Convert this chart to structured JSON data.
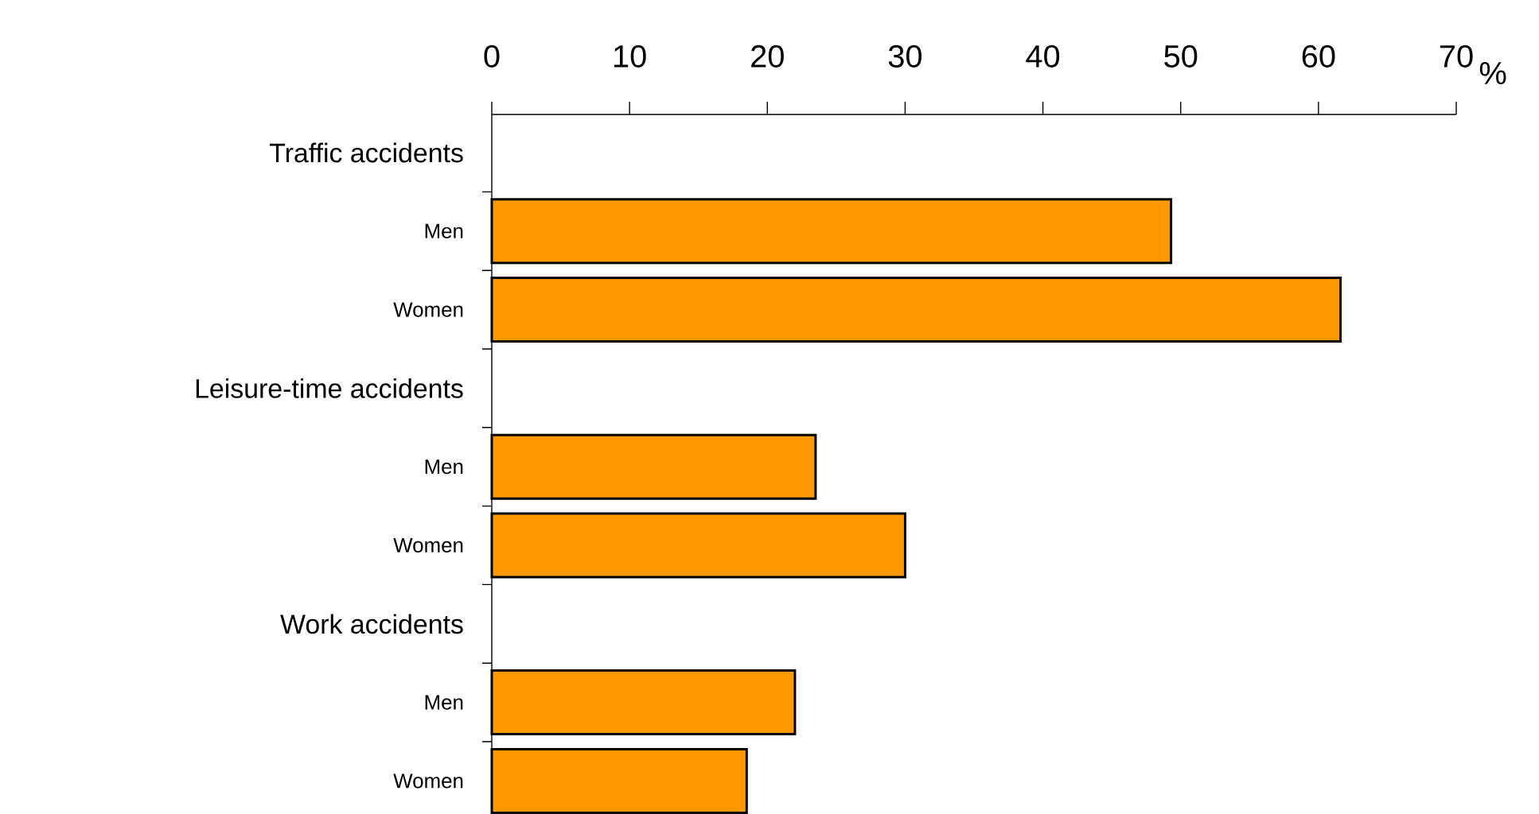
{
  "chart_data": {
    "type": "bar",
    "orientation": "horizontal",
    "xlabel": "%",
    "categories": [
      "Traffic accidents",
      "Men",
      "Women",
      "Leisure-time accidents",
      "Men",
      "Women",
      "Work accidents",
      "Men",
      "Women"
    ],
    "values": [
      null,
      49.3,
      61.6,
      null,
      23.5,
      30.0,
      null,
      22.0,
      18.5
    ],
    "color": "#ff9900",
    "xlim": [
      0,
      70
    ],
    "xticks": [
      0,
      10,
      20,
      30,
      40,
      50,
      60,
      70
    ]
  }
}
